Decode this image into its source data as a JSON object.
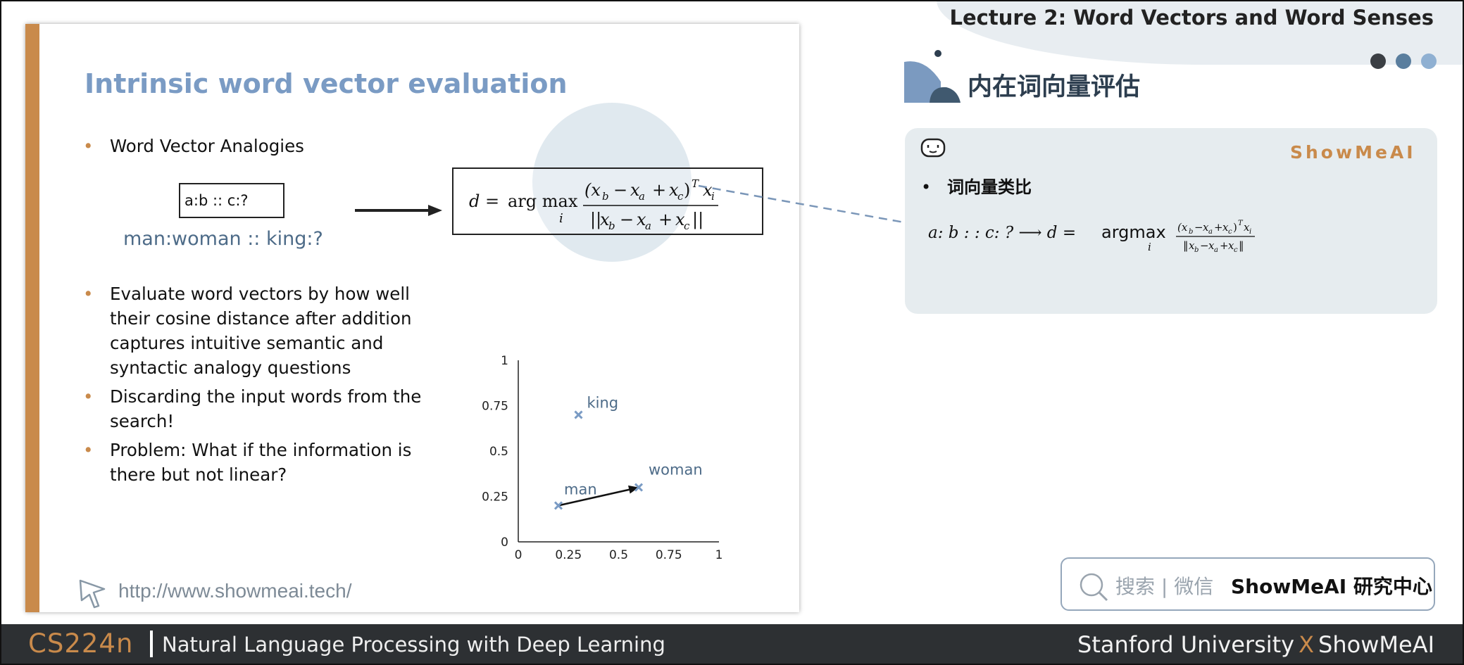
{
  "header": {
    "lecture_title": "Lecture 2:  Word Vectors and Word Senses",
    "dot_colors": [
      "#3b3f44",
      "#5a7e9e",
      "#8fb0d2"
    ]
  },
  "slide": {
    "title": "Intrinsic word vector evaluation",
    "bullet_1": "Word Vector Analogies",
    "analogy_box": "a:b :: c:?",
    "example": "man:woman :: king:?",
    "bullet_2": "Evaluate word vectors by how well their cosine distance after addition captures intuitive semantic and syntactic analogy questions",
    "bullet_3": "Discarding the input words from the search!",
    "bullet_4": "Problem: What if the information is there but not linear?",
    "url": "http://www.showmeai.tech/",
    "accent_color": "#c98a4b",
    "title_color": "#7a9bc4"
  },
  "chart_data": {
    "type": "scatter",
    "xlim": [
      0,
      1
    ],
    "ylim": [
      0,
      1
    ],
    "x_ticks": [
      "0",
      "0.25",
      "0.5",
      "0.75",
      "1"
    ],
    "y_ticks": [
      "0",
      "0.25",
      "0.5",
      "0.75",
      "1"
    ],
    "points": [
      {
        "label": "king",
        "x": 0.3,
        "y": 0.7
      },
      {
        "label": "man",
        "x": 0.2,
        "y": 0.2
      },
      {
        "label": "woman",
        "x": 0.6,
        "y": 0.3
      }
    ],
    "arrow": {
      "from": "man",
      "to": "woman"
    },
    "grid": false
  },
  "panel": {
    "section_title": "内在词向量评估",
    "brand": "ShowMeAI",
    "bullet": "词向量类比",
    "formula_lhs": "a: b : : c: ? ⟶ d =",
    "formula_op": "argmax",
    "formula_sub": "i"
  },
  "search": {
    "placeholder": "搜索 | 微信",
    "brand": "ShowMeAI 研究中心"
  },
  "footer": {
    "course_code": "CS224n",
    "course_name": "Natural Language Processing with Deep Learning",
    "left_org": "Stanford University",
    "x": "X",
    "right_org": "ShowMeAI"
  }
}
